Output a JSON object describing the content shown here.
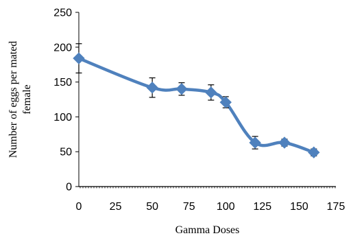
{
  "chart_data": {
    "type": "line",
    "title": "",
    "xlabel": "Gamma Doses",
    "ylabel_lines": [
      "Number of eggs per mated",
      "female"
    ],
    "xlim": [
      0,
      175
    ],
    "ylim": [
      0,
      250
    ],
    "x_ticks": [
      0,
      25,
      50,
      75,
      100,
      125,
      150,
      175
    ],
    "y_ticks": [
      0,
      50,
      100,
      150,
      200,
      250
    ],
    "grid": false,
    "legend": "none",
    "series": [
      {
        "color": "#4F81BD",
        "marker": "diamond",
        "smooth": true,
        "points": [
          {
            "x": 0,
            "y": 184,
            "err": 21
          },
          {
            "x": 50,
            "y": 142,
            "err": 14
          },
          {
            "x": 70,
            "y": 140,
            "err": 9
          },
          {
            "x": 90,
            "y": 135,
            "err": 11
          },
          {
            "x": 100,
            "y": 121,
            "err": 8
          },
          {
            "x": 120,
            "y": 63,
            "err": 9
          },
          {
            "x": 140,
            "y": 63,
            "err": 5
          },
          {
            "x": 160,
            "y": 49,
            "err": 5
          }
        ]
      }
    ]
  }
}
